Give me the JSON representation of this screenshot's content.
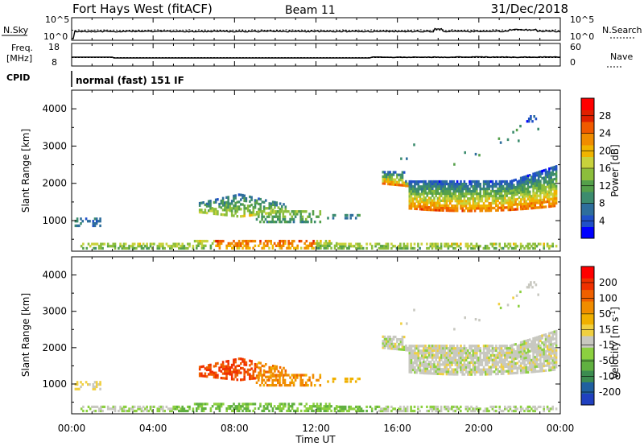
{
  "header": {
    "station": "Fort Hays West (fitACF)",
    "beam": "Beam 11",
    "date": "31/Dec/2018"
  },
  "noise_panel": {
    "left_label": "N.Sky",
    "right_label": "N.Search",
    "left_ticks": [
      "10^5",
      "10^0"
    ],
    "right_ticks": [
      "10^5",
      "10^0"
    ]
  },
  "freq_panel": {
    "left_label_1": "Freq.",
    "left_label_2": "[MHz]",
    "left_ticks": [
      "18",
      "8"
    ],
    "right_label": "Nave",
    "right_ticks": [
      "60",
      "0"
    ]
  },
  "cpid": {
    "label": "CPID",
    "text": "normal (fast) 151 IF"
  },
  "colors": {
    "power_scale": [
      "#0000ff",
      "#2050c8",
      "#2e6e9c",
      "#3c8c6e",
      "#55a04a",
      "#8cbe3c",
      "#c8d23c",
      "#f0b400",
      "#f08c00",
      "#f05a00",
      "#e02000",
      "#ff0000"
    ],
    "velocity_scale": [
      "#2040c0",
      "#2060a0",
      "#3c8c50",
      "#60b040",
      "#8cd040",
      "#c8c8c0",
      "#f0d040",
      "#f0b000",
      "#f08c00",
      "#f06000",
      "#f03000",
      "#ff0000"
    ]
  },
  "chart_data": [
    {
      "type": "line",
      "name": "noise",
      "xlim": [
        0,
        24
      ],
      "x_ticks": [
        "00:00",
        "04:00",
        "08:00",
        "12:00",
        "16:00",
        "20:00",
        "00:00"
      ]
    },
    {
      "type": "line",
      "name": "frequency",
      "xlim": [
        0,
        24
      ]
    },
    {
      "type": "heatmap",
      "name": "power",
      "ylabel": "Slant Range [km]",
      "ylim": [
        180,
        4500
      ],
      "y_ticks": [
        1000,
        2000,
        3000,
        4000
      ],
      "xlim": [
        0,
        24
      ],
      "colorbar": {
        "label": "Power [dB]",
        "range": [
          0,
          32
        ],
        "ticks": [
          "4",
          "8",
          "12",
          "16",
          "20",
          "24",
          "28"
        ]
      }
    },
    {
      "type": "heatmap",
      "name": "velocity",
      "ylabel": "Slant Range [km]",
      "ylim": [
        180,
        4500
      ],
      "y_ticks": [
        1000,
        2000,
        3000,
        4000
      ],
      "xlim": [
        0,
        24
      ],
      "xlabel": "Time UT",
      "x_ticks": [
        "00:00",
        "04:00",
        "08:00",
        "12:00",
        "16:00",
        "20:00",
        "00:00"
      ],
      "colorbar": {
        "label": "Velocity [m s-1]",
        "ticks": [
          "200",
          "100",
          "50",
          "15",
          "-15",
          "-50",
          "-100",
          "-200"
        ]
      }
    }
  ]
}
